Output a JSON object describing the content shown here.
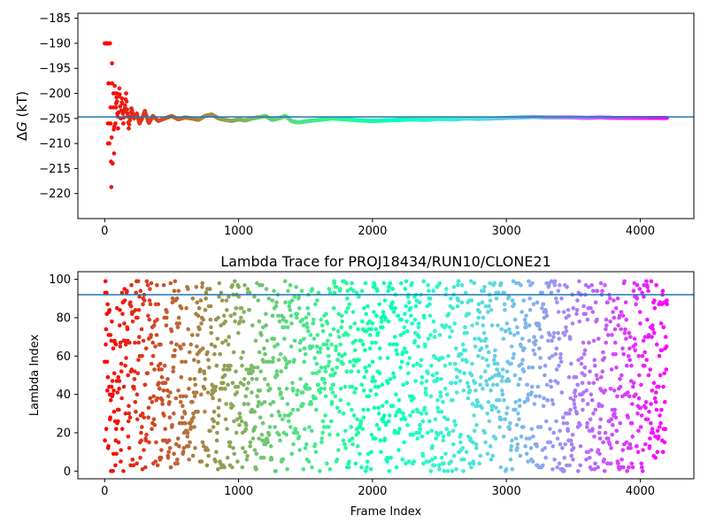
{
  "chart_data": [
    {
      "type": "scatter",
      "title": "",
      "xlabel": "",
      "ylabel": "ΔG (kT)",
      "ylabel_main": "Δ",
      "ylabel_italic": "G",
      "ylabel_unit": " (kT)",
      "xlim": [
        -200,
        4400
      ],
      "ylim": [
        -225,
        -184
      ],
      "x_ticks": [
        0,
        1000,
        2000,
        3000,
        4000
      ],
      "x_tick_labels": [
        "0",
        "1000",
        "2000",
        "3000",
        "4000"
      ],
      "y_ticks": [
        -220,
        -215,
        -210,
        -205,
        -200,
        -195,
        -190,
        -185
      ],
      "y_tick_labels": [
        "−220",
        "−215",
        "−210",
        "−205",
        "−200",
        "−195",
        "−190",
        "−185"
      ],
      "reference_line_y": -204.7,
      "reference_line_color": "#1f77b4",
      "colormap": "rainbow (red at frame 0 to violet at last frame)",
      "grid": false,
      "series": [
        {
          "points_x": [
            20,
            25,
            30,
            35,
            40,
            45,
            50,
            55,
            60,
            65,
            70,
            75,
            80,
            85,
            90,
            95,
            100,
            110,
            120,
            130,
            140,
            150,
            160,
            170,
            180,
            190,
            200,
            220,
            240,
            260,
            280,
            300,
            330,
            360,
            400,
            450,
            500,
            550,
            600,
            650,
            700,
            750,
            800,
            850,
            900,
            950,
            1000,
            1050,
            1100,
            1150,
            1200,
            1250,
            1300,
            1350,
            1400,
            1450,
            1500,
            1600,
            1700,
            1800,
            1900,
            2000,
            2100,
            2200,
            2300,
            2400,
            2500,
            2600,
            2700,
            2800,
            2900,
            3000,
            3100,
            3200,
            3300,
            3400,
            3500,
            3600,
            3700,
            3800,
            3900,
            4000,
            4100,
            4200
          ],
          "points_y": [
            -190,
            -210,
            -190,
            -210,
            -190,
            -206,
            -218.7,
            -194,
            -214,
            -200,
            -212,
            -198.5,
            -206,
            -202,
            -200,
            -204,
            -207,
            -199,
            -205,
            -201,
            -206,
            -203,
            -200,
            -204,
            -207,
            -205,
            -203,
            -205,
            -204,
            -206,
            -205,
            -203.5,
            -206,
            -204.5,
            -205.5,
            -205,
            -204.5,
            -205.2,
            -204.8,
            -205,
            -205.3,
            -204.5,
            -204.2,
            -205,
            -205.3,
            -205.5,
            -205.2,
            -205.4,
            -205,
            -204.8,
            -204.5,
            -205.3,
            -205,
            -204.5,
            -205.6,
            -205.8,
            -205.6,
            -205.3,
            -205,
            -205.2,
            -205.4,
            -205.5,
            -205.4,
            -205.3,
            -205.2,
            -205.3,
            -205.1,
            -205.2,
            -205,
            -205.1,
            -205,
            -204.9,
            -204.8,
            -204.7,
            -204.8,
            -204.8,
            -204.8,
            -204.9,
            -204.8,
            -204.9,
            -204.9,
            -204.9,
            -204.9,
            -204.9
          ]
        }
      ]
    },
    {
      "type": "scatter",
      "title": "Lambda Trace for PROJ18434/RUN10/CLONE21",
      "xlabel": "Frame Index",
      "ylabel": "Lambda Index",
      "xlim": [
        -200,
        4400
      ],
      "ylim": [
        -4,
        104
      ],
      "x_ticks": [
        0,
        1000,
        2000,
        3000,
        4000
      ],
      "x_tick_labels": [
        "0",
        "1000",
        "2000",
        "3000",
        "4000"
      ],
      "y_ticks": [
        0,
        20,
        40,
        60,
        80,
        100
      ],
      "y_tick_labels": [
        "0",
        "20",
        "40",
        "60",
        "80",
        "100"
      ],
      "reference_line_y": 92,
      "reference_line_color": "#1f77b4",
      "colormap": "rainbow (red at frame 0 to violet at last frame)",
      "grid": false,
      "x_range": [
        0,
        4200
      ],
      "lambda_range": [
        0,
        99
      ],
      "frames_per_point": 2
    }
  ]
}
